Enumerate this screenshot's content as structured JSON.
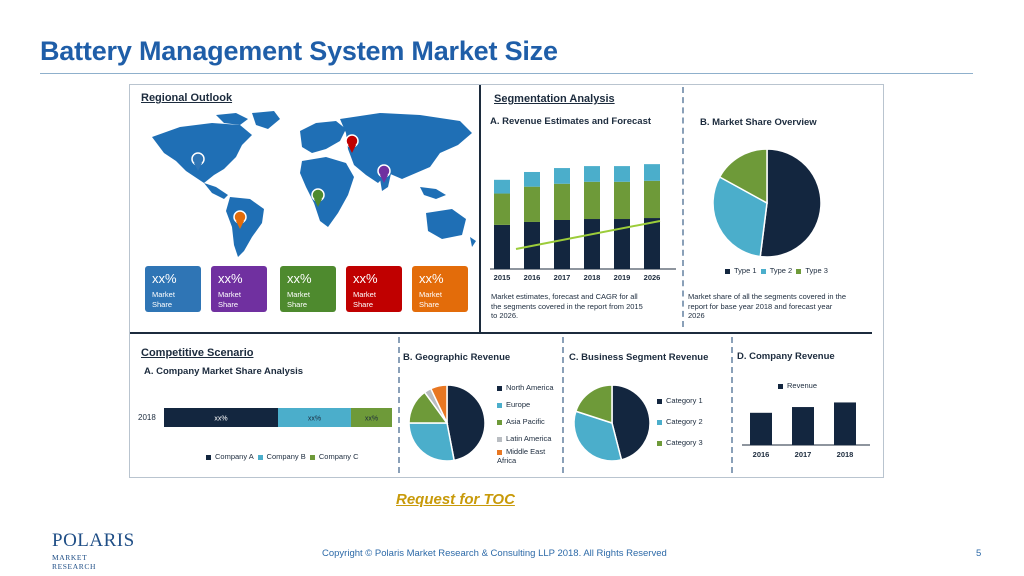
{
  "slide": {
    "title": "Battery Management System Market Size",
    "toc_link": "Request for TOC",
    "copyright": "Copyright © Polaris Market Research & Consulting LLP 2018. All Rights Reserved",
    "page_number": "5",
    "logo_main": "POLARIS",
    "logo_sub": "MARKET RESEARCH"
  },
  "infographic": {
    "regional": {
      "title": "Regional Outlook",
      "cards": [
        {
          "pct": "xx%",
          "line1": "Market",
          "line2": "Share",
          "color": "#2f75b5"
        },
        {
          "pct": "xx%",
          "line1": "Market",
          "line2": "Share",
          "color": "#7030a0"
        },
        {
          "pct": "xx%",
          "line1": "Market",
          "line2": "Share",
          "color": "#4e8a2e"
        },
        {
          "pct": "xx%",
          "line1": "Market",
          "line2": "Share",
          "color": "#c00000"
        },
        {
          "pct": "xx%",
          "line1": "Market",
          "line2": "Share",
          "color": "#e36c0a"
        }
      ]
    },
    "segmentation": {
      "title": "Segmentation Analysis",
      "revenue_title": "A. Revenue Estimates and Forecast",
      "revenue_caption_1": "Market estimates, forecast and CAGR for all",
      "revenue_caption_2": "the segments covered in the report from 2015",
      "revenue_caption_3": "to 2026.",
      "share_title": "B. Market Share Overview",
      "share_caption_1": "Market share of all the segments covered in the",
      "share_caption_2": "report for base year 2018 and forecast year",
      "share_caption_3": "2026"
    },
    "competitive": {
      "title": "Competitive Scenario",
      "company_share_title": "A. Company Market Share Analysis",
      "bar_year": "2018",
      "bar_labels": [
        "xx%",
        "xx%",
        "xx%"
      ],
      "geo_title": "B. Geographic Revenue",
      "business_title": "C. Business Segment Revenue",
      "company_rev_title": "D. Company Revenue"
    },
    "colors": {
      "navy": "#13263f",
      "teal": "#4baecb",
      "green": "#6e9a39",
      "light_blue": "#4baecb",
      "grey": "#b9bdc2",
      "orange": "#e87722"
    }
  },
  "chart_data": [
    {
      "type": "bar",
      "title": "A. Revenue Estimates and Forecast",
      "categories": [
        "2015",
        "2016",
        "2017",
        "2018",
        "2019",
        "2026"
      ],
      "series": [
        {
          "values": [
            45,
            48,
            50,
            51,
            51,
            52
          ]
        },
        {
          "values": [
            32,
            36,
            37,
            38,
            38,
            38
          ]
        },
        {
          "values": [
            14,
            15,
            16,
            16,
            16,
            17
          ]
        }
      ],
      "trend_line": true
    },
    {
      "type": "pie",
      "title": "B. Market Share Overview",
      "labels": [
        "Type 1",
        "Type 2",
        "Type 3"
      ],
      "values": [
        52,
        31,
        17
      ]
    },
    {
      "type": "bar",
      "title": "A. Company Market Share Analysis",
      "categories": [
        "2018"
      ],
      "series": [
        {
          "name": "Company A",
          "values": [
            50
          ]
        },
        {
          "name": "Company B",
          "values": [
            32
          ]
        },
        {
          "name": "Company C",
          "values": [
            18
          ]
        }
      ]
    },
    {
      "type": "pie",
      "title": "B. Geographic Revenue",
      "labels": [
        "North America",
        "Europe",
        "Asia Pacific",
        "Latin America",
        "Middle East Africa"
      ],
      "values": [
        47,
        28,
        15,
        3,
        7
      ]
    },
    {
      "type": "pie",
      "title": "C. Business Segment Revenue",
      "labels": [
        "Category 1",
        "Category 2",
        "Category 3"
      ],
      "values": [
        46,
        34,
        20
      ]
    },
    {
      "type": "bar",
      "title": "D. Company Revenue",
      "categories": [
        "2016",
        "2017",
        "2018"
      ],
      "series": [
        {
          "name": "Revenue",
          "values": [
            28,
            33,
            37
          ]
        }
      ],
      "ylim": [
        0,
        40
      ]
    }
  ]
}
